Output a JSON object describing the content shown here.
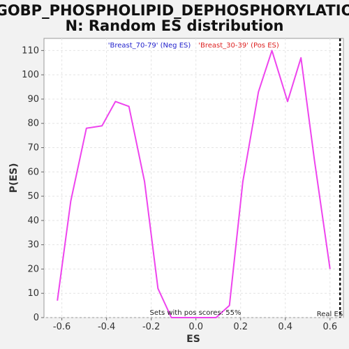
{
  "chart_data": {
    "type": "line",
    "title_line1": "GOBP_PHOSPHOLIPID_DEPHOSPHORYLATIO",
    "title_line2": "N: Random ES distribution",
    "xlabel": "ES",
    "ylabel": "P(ES)",
    "xlim": [
      -0.68,
      0.66
    ],
    "ylim": [
      0,
      115
    ],
    "xticks": [
      -0.6,
      -0.4,
      -0.2,
      0.0,
      0.2,
      0.4,
      0.6
    ],
    "xtick_labels": [
      "-0.6",
      "-0.4",
      "-0.2",
      "0.0",
      "0.2",
      "0.4",
      "0.6"
    ],
    "yticks": [
      0,
      10,
      20,
      30,
      40,
      50,
      60,
      70,
      80,
      90,
      100,
      110
    ],
    "ytick_labels": [
      "0",
      "10",
      "20",
      "30",
      "40",
      "50",
      "60",
      "70",
      "80",
      "90",
      "100",
      "110"
    ],
    "grid": true,
    "legend": [
      {
        "label": "'Breast_70-79' (Neg ES)",
        "color": "#2222cc"
      },
      {
        "label": "'Breast_30-39' (Pos ES)",
        "color": "#dd2222"
      }
    ],
    "series": [
      {
        "color": "#ee44ee",
        "x": [
          -0.62,
          -0.56,
          -0.49,
          -0.42,
          -0.36,
          -0.3,
          -0.23,
          -0.17,
          -0.11,
          -0.05,
          0.02,
          0.09,
          0.15,
          0.21,
          0.28,
          0.34,
          0.41,
          0.47,
          0.53,
          0.6
        ],
        "y": [
          7,
          48,
          78,
          79,
          89,
          87,
          56,
          12,
          0,
          0,
          0,
          0,
          5,
          56,
          93,
          110,
          89,
          107,
          65,
          20
        ]
      }
    ],
    "real_es_x": 0.645,
    "real_es_label": "Real ES",
    "annotation": "Sets with pos scores: 55%"
  }
}
